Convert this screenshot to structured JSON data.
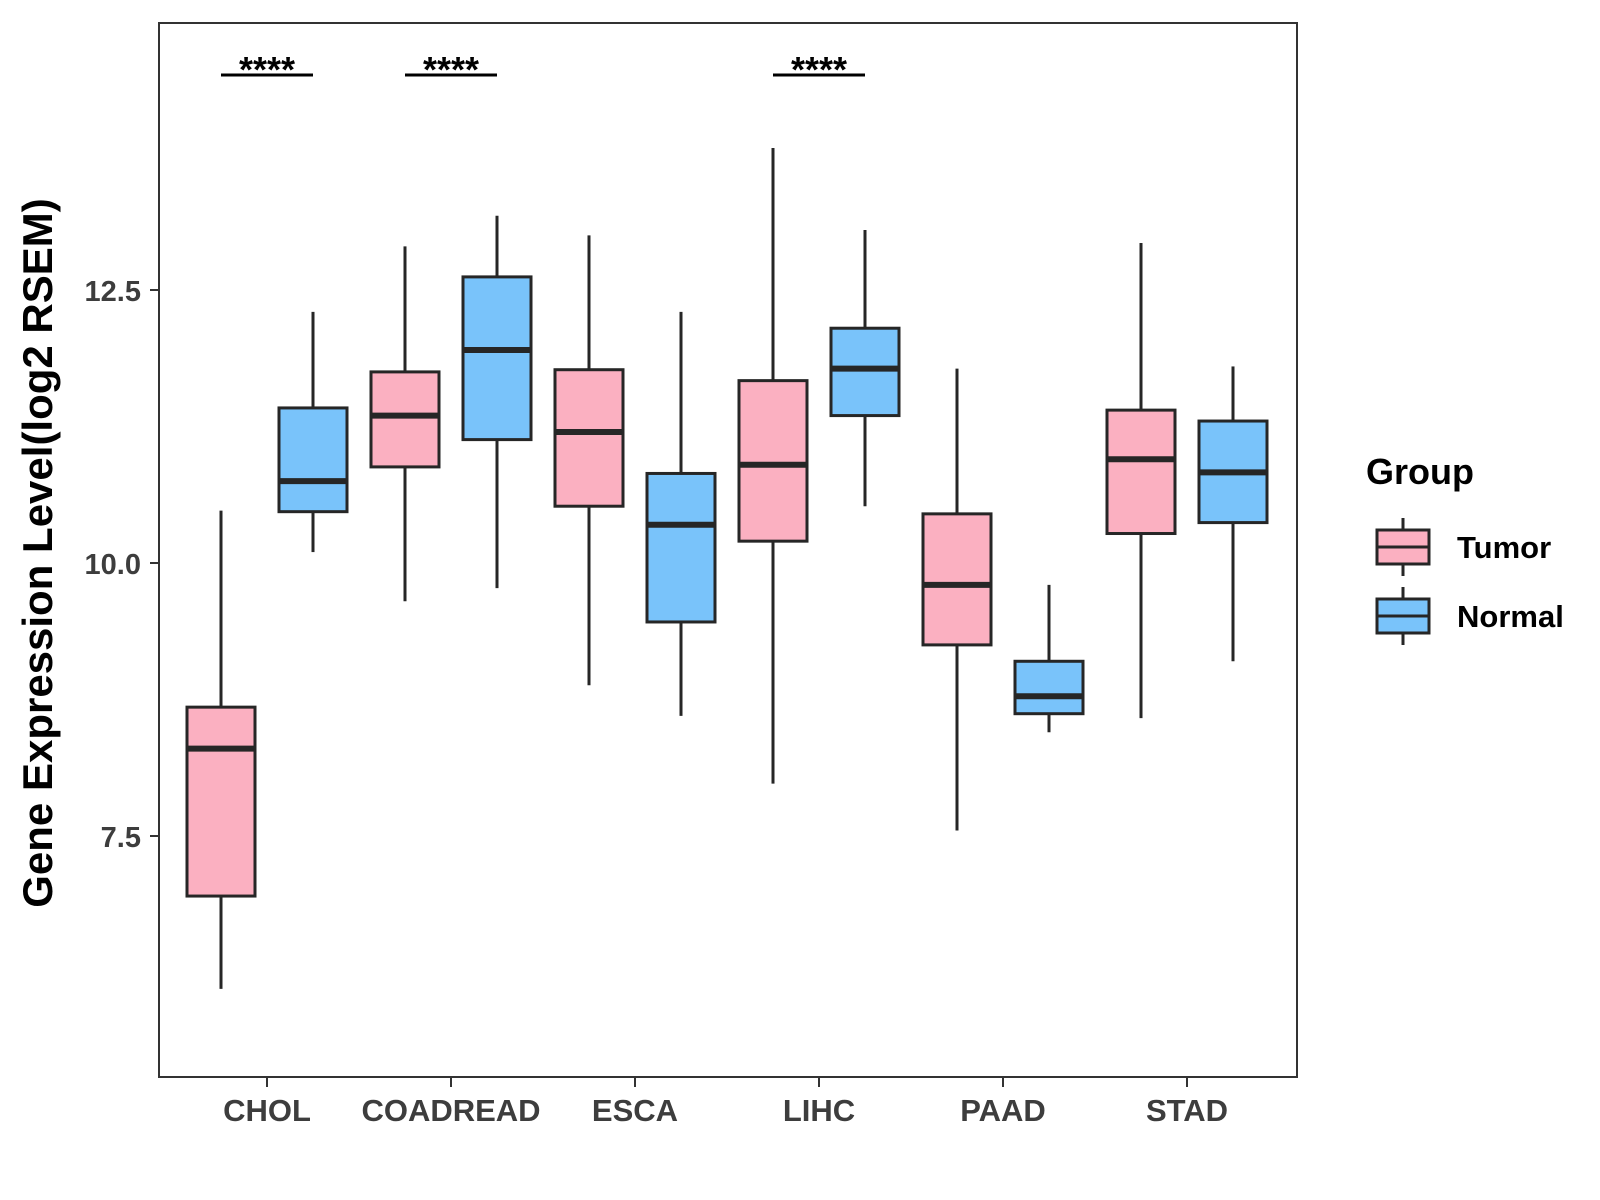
{
  "chart_data": {
    "type": "boxplot",
    "title": "",
    "xlabel": "",
    "ylabel": "Gene Expression Level(log2 RSEM)",
    "ylim": [
      5.5,
      15.2
    ],
    "yticks": [
      7.5,
      10.0,
      12.5
    ],
    "ytick_labels": [
      "7.5",
      "10.0",
      "12.5"
    ],
    "categories": [
      "CHOL",
      "COADREAD",
      "ESCA",
      "LIHC",
      "PAAD",
      "STAD"
    ],
    "series": [
      {
        "name": "Tumor",
        "color": "#FBB0C1",
        "boxes": [
          {
            "min": 6.1,
            "q1": 6.95,
            "median": 8.3,
            "q3": 8.68,
            "max": 10.48
          },
          {
            "min": 9.65,
            "q1": 10.88,
            "median": 11.35,
            "q3": 11.75,
            "max": 12.9
          },
          {
            "min": 8.88,
            "q1": 10.52,
            "median": 11.2,
            "q3": 11.77,
            "max": 13.0
          },
          {
            "min": 7.98,
            "q1": 10.2,
            "median": 10.9,
            "q3": 11.67,
            "max": 13.8
          },
          {
            "min": 7.55,
            "q1": 9.25,
            "median": 9.8,
            "q3": 10.45,
            "max": 11.78
          },
          {
            "min": 8.58,
            "q1": 10.27,
            "median": 10.95,
            "q3": 11.4,
            "max": 12.93
          }
        ]
      },
      {
        "name": "Normal",
        "color": "#79C3FA",
        "boxes": [
          {
            "min": 10.1,
            "q1": 10.47,
            "median": 10.75,
            "q3": 11.42,
            "max": 12.3
          },
          {
            "min": 9.77,
            "q1": 11.13,
            "median": 11.95,
            "q3": 12.62,
            "max": 13.18
          },
          {
            "min": 8.6,
            "q1": 9.46,
            "median": 10.35,
            "q3": 10.82,
            "max": 12.3
          },
          {
            "min": 10.52,
            "q1": 11.35,
            "median": 11.78,
            "q3": 12.15,
            "max": 13.05
          },
          {
            "min": 8.45,
            "q1": 8.62,
            "median": 8.78,
            "q3": 9.1,
            "max": 9.8
          },
          {
            "min": 9.1,
            "q1": 10.37,
            "median": 10.83,
            "q3": 11.3,
            "max": 11.8
          }
        ]
      }
    ],
    "annotations": [
      {
        "category": "CHOL",
        "label": "****"
      },
      {
        "category": "COADREAD",
        "label": "****"
      },
      {
        "category": "LIHC",
        "label": "****"
      }
    ],
    "legend": {
      "title": "Group",
      "position": "right",
      "entries": [
        "Tumor",
        "Normal"
      ]
    },
    "grid": false,
    "frame_color": "#333333",
    "box_stroke_color": "#262626"
  }
}
